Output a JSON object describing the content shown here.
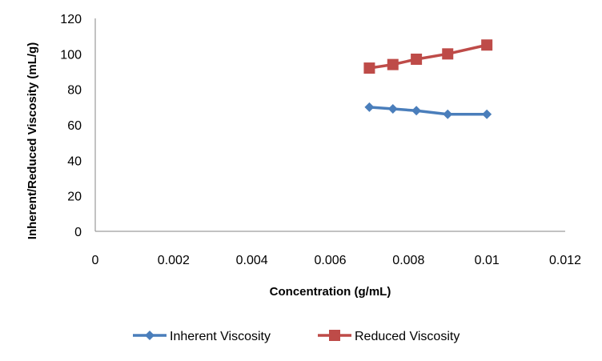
{
  "chart_data": {
    "type": "line",
    "xlabel": "Concentration (g/mL)",
    "ylabel": "Inherent/Reduced Viscosity (mL/g)",
    "xlim": [
      0,
      0.012
    ],
    "ylim": [
      0,
      120
    ],
    "x_ticks": [
      "0",
      "0.002",
      "0.004",
      "0.006",
      "0.008",
      "0.01",
      "0.012"
    ],
    "y_ticks": [
      "0",
      "20",
      "40",
      "60",
      "80",
      "100",
      "120"
    ],
    "grid": false,
    "legend_position": "bottom",
    "series": [
      {
        "name": "Inherent Viscosity",
        "color": "#4a7ebb",
        "marker": "diamond",
        "x": [
          0.007,
          0.0076,
          0.0082,
          0.009,
          0.01
        ],
        "y": [
          70,
          69,
          68,
          66,
          66
        ]
      },
      {
        "name": "Reduced Viscosity",
        "color": "#be4b48",
        "marker": "square",
        "x": [
          0.007,
          0.0076,
          0.0082,
          0.009,
          0.01
        ],
        "y": [
          92,
          94,
          97,
          100,
          105
        ]
      }
    ]
  }
}
